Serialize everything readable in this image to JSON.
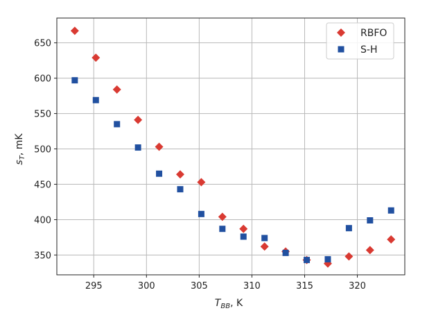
{
  "chart_data": {
    "type": "scatter",
    "title": "",
    "xlabel": {
      "main": "T",
      "sub": "BB",
      "suffix": ", K"
    },
    "ylabel": {
      "main": "s",
      "sub": "T",
      "suffix": ", mK"
    },
    "xlim": [
      291.5,
      324.5
    ],
    "ylim": [
      322,
      685
    ],
    "xticks": [
      295,
      300,
      305,
      310,
      315,
      320
    ],
    "yticks": [
      350,
      400,
      450,
      500,
      550,
      600,
      650
    ],
    "grid": true,
    "legend_position": "top-right",
    "series": [
      {
        "name": "RBFO",
        "marker": "diamond",
        "color": "#d93a32",
        "x": [
          293.2,
          295.2,
          297.2,
          299.2,
          301.2,
          303.2,
          305.2,
          307.2,
          309.2,
          311.2,
          313.2,
          315.2,
          317.2,
          319.2,
          321.2,
          323.2
        ],
        "y": [
          667,
          629,
          584,
          541,
          503,
          464,
          453,
          404,
          387,
          362,
          355,
          343,
          338,
          348,
          357,
          372
        ]
      },
      {
        "name": "S-H",
        "marker": "square",
        "color": "#2150a0",
        "x": [
          293.2,
          295.2,
          297.2,
          299.2,
          301.2,
          303.2,
          305.2,
          307.2,
          309.2,
          311.2,
          313.2,
          315.2,
          317.2,
          319.2,
          321.2,
          323.2
        ],
        "y": [
          597,
          569,
          535,
          502,
          465,
          443,
          408,
          387,
          376,
          374,
          353,
          343,
          344,
          388,
          399,
          413
        ]
      }
    ]
  }
}
